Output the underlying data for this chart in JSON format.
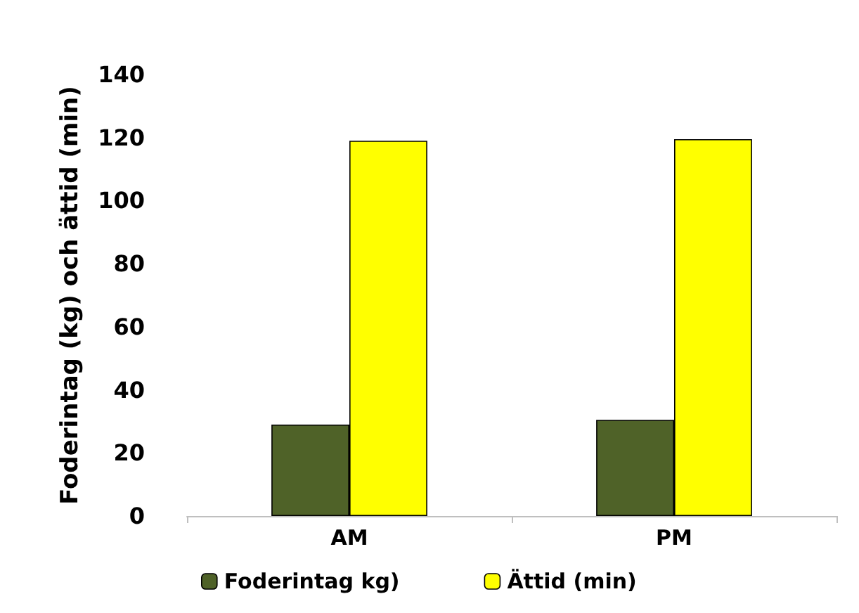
{
  "chart_data": {
    "type": "bar",
    "ylabel": "Foderintag (kg) och ättid (min)",
    "categories": [
      "AM",
      "PM"
    ],
    "series": [
      {
        "name": "Foderintag kg)",
        "color": "#4f6228",
        "values": [
          29,
          30.5
        ]
      },
      {
        "name": "Ättid (min)",
        "color": "#ffff00",
        "values": [
          119,
          119.5
        ]
      }
    ],
    "ylim": [
      0,
      140
    ],
    "yticks": [
      0,
      20,
      40,
      60,
      80,
      100,
      120,
      140
    ],
    "grid": false,
    "legend": "bottom"
  }
}
